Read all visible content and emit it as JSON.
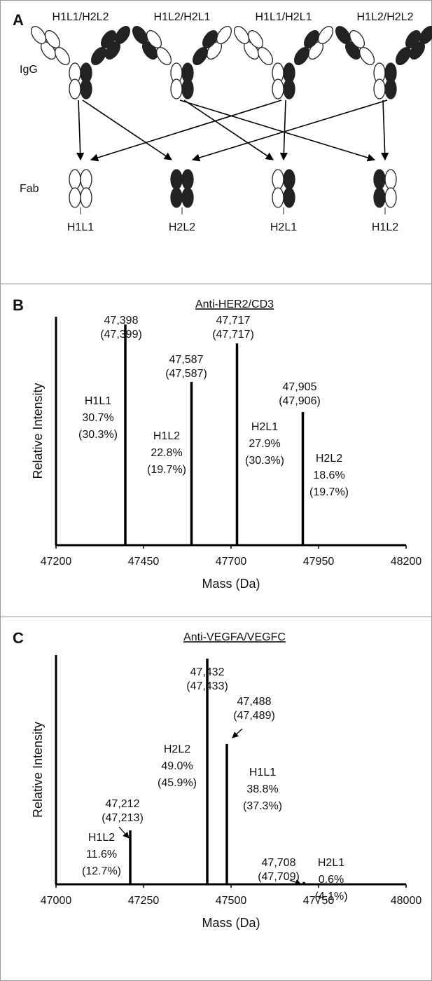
{
  "panel_a": {
    "panel_label": "A",
    "igg_label": "IgG",
    "fab_label": "Fab",
    "igg": [
      "H1L1/H2L2",
      "H1L2/H2L1",
      "H1L1/H2L1",
      "H1L2/H2L2"
    ],
    "fab": [
      "H1L1",
      "H2L2",
      "H2L1",
      "H1L2"
    ]
  },
  "chart_data": [
    {
      "type": "stem",
      "panel_label": "B",
      "title": "Anti-HER2/CD3",
      "xlabel": "Mass (Da)",
      "ylabel": "Relative Intensity",
      "x": [
        47398,
        47587,
        47717,
        47905
      ],
      "x_labels": [
        "47,398",
        "47,587",
        "47,717",
        "47,905"
      ],
      "expected_x_labels": [
        "(47,399)",
        "(47,587)",
        "(47,717)",
        "(47,906)"
      ],
      "values": [
        96.6,
        71.5,
        88.3,
        58.3
      ],
      "peak_names": [
        "H1L1",
        "H1L2",
        "H2L1",
        "H2L2"
      ],
      "observed_pct": [
        "30.7%",
        "22.8%",
        "27.9%",
        "18.6%"
      ],
      "expected_pct": [
        "(30.3%)",
        "(19.7%)",
        "(30.3%)",
        "(19.7%)"
      ],
      "xlim": [
        47200,
        48200
      ],
      "xticks": [
        47200,
        47450,
        47700,
        47950,
        48200
      ],
      "ylim": [
        0,
        100
      ],
      "color": "#000000"
    },
    {
      "type": "stem",
      "panel_label": "C",
      "title": "Anti-VEGFA/VEGFC",
      "xlabel": "Mass (Da)",
      "ylabel": "Relative Intensity",
      "x": [
        47212,
        47432,
        47488,
        47708
      ],
      "x_labels": [
        "47,212",
        "47,432",
        "47,488",
        "47,708"
      ],
      "expected_x_labels": [
        "(47,213)",
        "(47,433)",
        "(47,489)",
        "(47,709)"
      ],
      "values": [
        23.5,
        98.5,
        61.2,
        1.0
      ],
      "peak_names": [
        "H1L2",
        "H2L2",
        "H1L1",
        "H2L1"
      ],
      "observed_pct": [
        "11.6%",
        "49.0%",
        "38.8%",
        "0.6%"
      ],
      "expected_pct": [
        "(12.7%)",
        "(45.9%)",
        "(37.3%)",
        "(4.1%)"
      ],
      "xlim": [
        47000,
        48000
      ],
      "xticks": [
        47000,
        47250,
        47500,
        47750,
        48000
      ],
      "ylim": [
        0,
        100
      ],
      "color": "#000000"
    }
  ]
}
